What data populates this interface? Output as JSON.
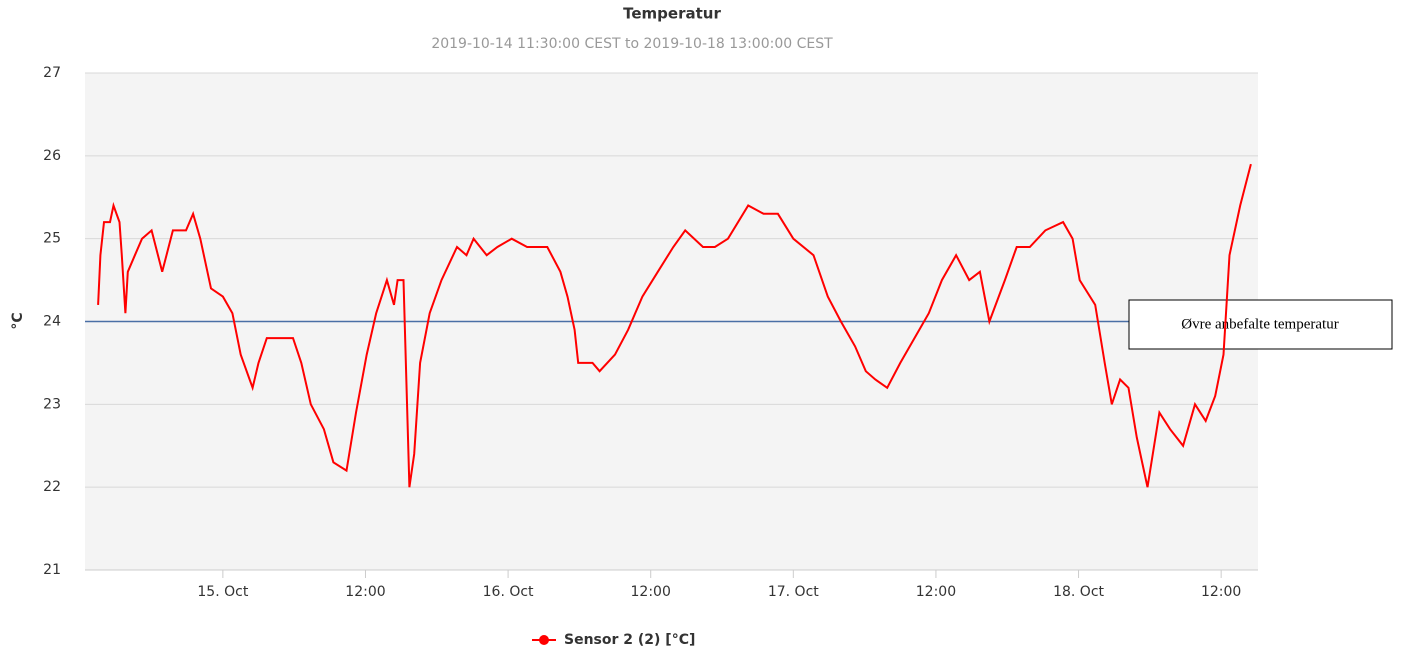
{
  "chart_data": {
    "type": "line",
    "title": "Temperatur",
    "subtitle": "2019-10-14 11:30:00 CEST to 2019-10-18 13:00:00 CEST",
    "ylabel": "°C",
    "xlim": [
      "2019-10-14 12:24",
      "2019-10-18 15:06"
    ],
    "xticks": [
      {
        "value": "2019-10-15 00:00",
        "label": "15. Oct"
      },
      {
        "value": "2019-10-15 12:00",
        "label": "12:00"
      },
      {
        "value": "2019-10-16 00:00",
        "label": "16. Oct"
      },
      {
        "value": "2019-10-16 12:00",
        "label": "12:00"
      },
      {
        "value": "2019-10-17 00:00",
        "label": "17. Oct"
      },
      {
        "value": "2019-10-17 12:00",
        "label": "12:00"
      },
      {
        "value": "2019-10-18 00:00",
        "label": "18. Oct"
      },
      {
        "value": "2019-10-18 12:00",
        "label": "12:00"
      }
    ],
    "ylim": [
      21,
      27
    ],
    "yticks": [
      21,
      22,
      23,
      24,
      25,
      26,
      27
    ],
    "grid": true,
    "reference_line": {
      "value": 24,
      "label": "Øvre anbefalte temperatur",
      "color": "#4a6fa5"
    },
    "x": [
      "2019-10-14 13:30",
      "2019-10-14 13:42",
      "2019-10-14 14:00",
      "2019-10-14 14:30",
      "2019-10-14 14:48",
      "2019-10-14 15:18",
      "2019-10-14 15:30",
      "2019-10-14 15:48",
      "2019-10-14 16:00",
      "2019-10-14 16:36",
      "2019-10-14 17:12",
      "2019-10-14 18:00",
      "2019-10-14 18:54",
      "2019-10-14 19:48",
      "2019-10-14 20:54",
      "2019-10-14 21:30",
      "2019-10-14 22:06",
      "2019-10-14 23:00",
      "2019-10-15 00:00",
      "2019-10-15 00:48",
      "2019-10-15 01:30",
      "2019-10-15 02:30",
      "2019-10-15 03:00",
      "2019-10-15 03:42",
      "2019-10-15 04:42",
      "2019-10-15 05:54",
      "2019-10-15 06:36",
      "2019-10-15 07:24",
      "2019-10-15 08:30",
      "2019-10-15 09:18",
      "2019-10-15 10:24",
      "2019-10-15 11:12",
      "2019-10-15 12:06",
      "2019-10-15 12:54",
      "2019-10-15 13:48",
      "2019-10-15 14:24",
      "2019-10-15 14:42",
      "2019-10-15 15:12",
      "2019-10-15 15:42",
      "2019-10-15 16:06",
      "2019-10-15 16:36",
      "2019-10-15 17:24",
      "2019-10-15 18:24",
      "2019-10-15 19:42",
      "2019-10-15 20:30",
      "2019-10-15 21:06",
      "2019-10-15 22:12",
      "2019-10-15 23:06",
      "2019-10-16 00:18",
      "2019-10-16 01:36",
      "2019-10-16 03:18",
      "2019-10-16 04:24",
      "2019-10-16 05:00",
      "2019-10-16 05:36",
      "2019-10-16 05:54",
      "2019-10-16 07:06",
      "2019-10-16 07:42",
      "2019-10-16 09:00",
      "2019-10-16 10:06",
      "2019-10-16 11:18",
      "2019-10-16 12:36",
      "2019-10-16 13:54",
      "2019-10-16 14:54",
      "2019-10-16 16:24",
      "2019-10-16 17:24",
      "2019-10-16 18:30",
      "2019-10-16 20:12",
      "2019-10-16 21:30",
      "2019-10-16 22:42",
      "2019-10-17 00:00",
      "2019-10-17 01:42",
      "2019-10-17 02:54",
      "2019-10-17 04:00",
      "2019-10-17 05:12",
      "2019-10-17 06:06",
      "2019-10-17 06:54",
      "2019-10-17 07:54",
      "2019-10-17 09:00",
      "2019-10-17 10:12",
      "2019-10-17 11:24",
      "2019-10-17 12:30",
      "2019-10-17 13:42",
      "2019-10-17 14:48",
      "2019-10-17 15:42",
      "2019-10-17 16:30",
      "2019-10-17 17:48",
      "2019-10-17 18:48",
      "2019-10-17 19:54",
      "2019-10-17 21:12",
      "2019-10-17 22:42",
      "2019-10-17 23:30",
      "2019-10-18 00:06",
      "2019-10-18 01:24",
      "2019-10-18 02:12",
      "2019-10-18 02:48",
      "2019-10-18 03:30",
      "2019-10-18 04:12",
      "2019-10-18 04:54",
      "2019-10-18 05:48",
      "2019-10-18 06:48",
      "2019-10-18 07:42",
      "2019-10-18 08:48",
      "2019-10-18 09:48",
      "2019-10-18 10:42",
      "2019-10-18 11:30",
      "2019-10-18 12:12",
      "2019-10-18 12:42",
      "2019-10-18 13:36",
      "2019-10-18 14:30"
    ],
    "series": [
      {
        "name": "Sensor 2 (2) [°C]",
        "color": "#ff0000",
        "values": [
          24.2,
          24.8,
          25.2,
          25.2,
          25.4,
          25.2,
          24.8,
          24.1,
          24.6,
          24.8,
          25.0,
          25.1,
          24.6,
          25.1,
          25.1,
          25.3,
          25.0,
          24.4,
          24.3,
          24.1,
          23.6,
          23.2,
          23.5,
          23.8,
          23.8,
          23.8,
          23.5,
          23.0,
          22.7,
          22.3,
          22.2,
          22.9,
          23.6,
          24.1,
          24.5,
          24.2,
          24.5,
          24.5,
          22.0,
          22.4,
          23.5,
          24.1,
          24.5,
          24.9,
          24.8,
          25.0,
          24.8,
          24.9,
          25.0,
          24.9,
          24.9,
          24.6,
          24.3,
          23.9,
          23.5,
          23.5,
          23.4,
          23.6,
          23.9,
          24.3,
          24.6,
          24.9,
          25.1,
          24.9,
          24.9,
          25.0,
          25.4,
          25.3,
          25.3,
          25.0,
          24.8,
          24.3,
          24.0,
          23.7,
          23.4,
          23.3,
          23.2,
          23.5,
          23.8,
          24.1,
          24.5,
          24.8,
          24.5,
          24.6,
          24.0,
          24.5,
          24.9,
          24.9,
          25.1,
          25.2,
          25.0,
          24.5,
          24.2,
          23.5,
          23.0,
          23.3,
          23.2,
          22.6,
          22.0,
          22.9,
          22.7,
          22.5,
          23.0,
          22.8,
          23.1,
          23.6,
          24.8,
          25.4,
          25.9
        ]
      }
    ]
  }
}
